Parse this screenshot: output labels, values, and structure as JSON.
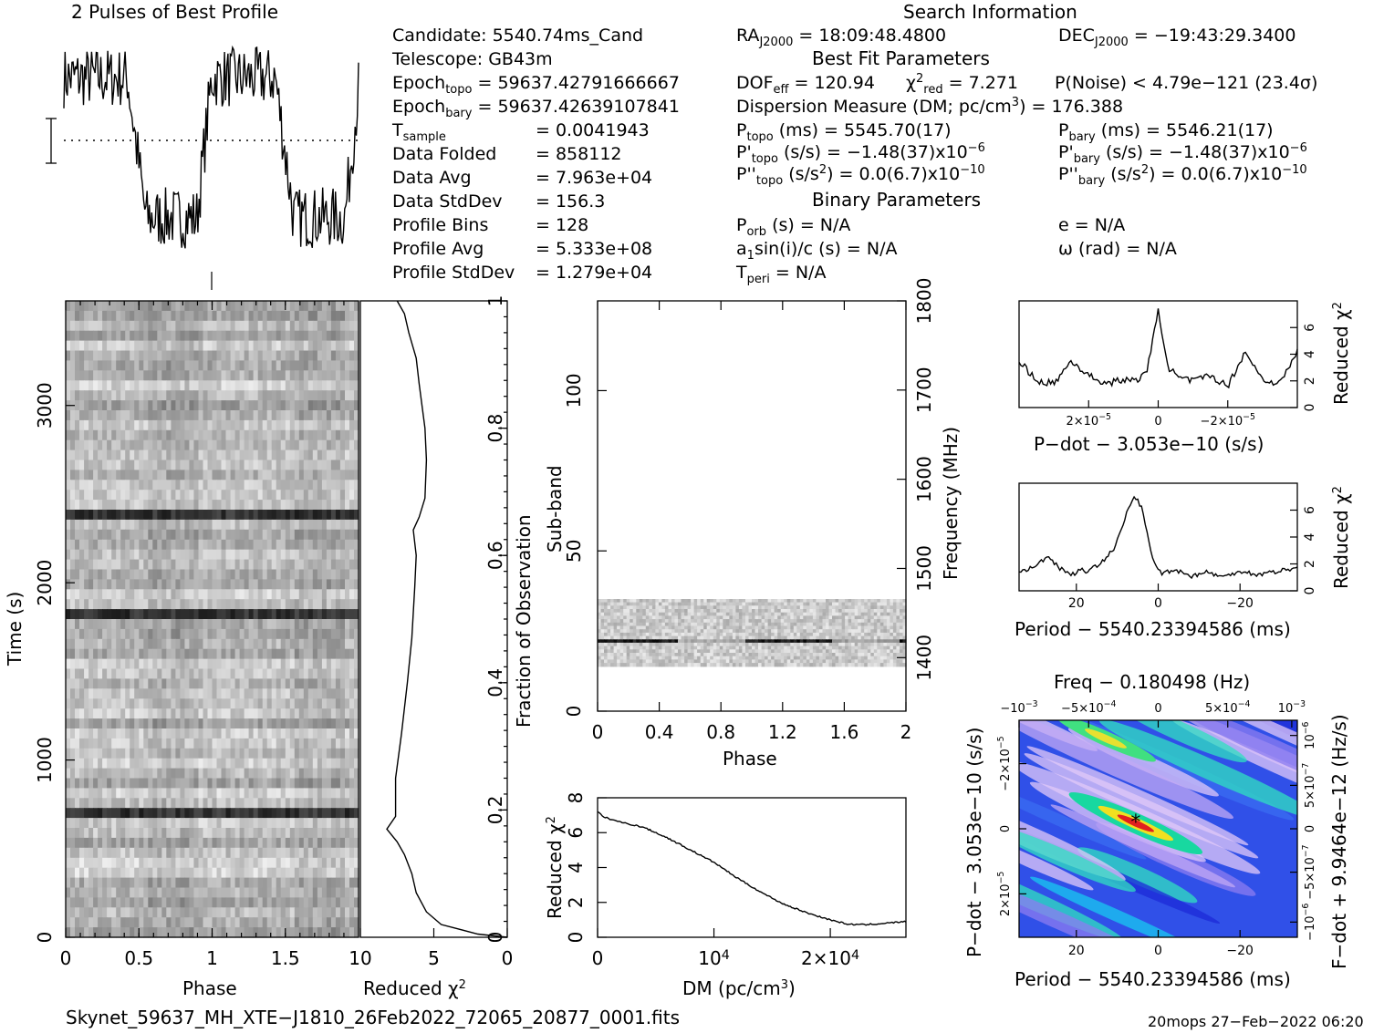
{
  "header": {
    "profile_title": "2 Pulses of Best Profile",
    "search_title": "Search Information",
    "best_fit_title": "Best Fit Parameters",
    "binary_title": "Binary Parameters"
  },
  "candidate_info": {
    "candidate": "Candidate:  5540.74ms_Cand",
    "telescope": "Telescope:  GB43m",
    "epoch_topo_label": "Epoch",
    "epoch_topo_sub": "topo",
    "epoch_topo_value": " = 59637.42791666667",
    "epoch_bary_label": "Epoch",
    "epoch_bary_sub": "bary",
    "epoch_bary_value": " = 59637.42639107841",
    "tsample_label": "T",
    "tsample_sub": "sample",
    "tsample_value": "=   0.0041943",
    "data_folded_label": "Data Folded",
    "data_folded_value": "=   858112",
    "data_avg_label": "Data Avg",
    "data_avg_value": "=   7.963e+04",
    "data_stddev_label": "Data StdDev",
    "data_stddev_value": "=   156.3",
    "profile_bins_label": "Profile Bins",
    "profile_bins_value": "=   128",
    "profile_avg_label": "Profile Avg",
    "profile_avg_value": "=   5.333e+08",
    "profile_stddev_label": "Profile StdDev",
    "profile_stddev_value": "=   1.279e+04"
  },
  "search_info": {
    "ra_label": "RA",
    "ra_sub": "J2000",
    "ra_value": " = 18:09:48.4800",
    "dec_label": "DEC",
    "dec_sub": "J2000",
    "dec_value": " = −19:43:29.3400",
    "dof_label": "DOF",
    "dof_sub": "eff",
    "dof_value": " = 120.94",
    "chi_label": "χ",
    "chi_sup": "2",
    "chi_sub": "red",
    "chi_value": " = 7.271",
    "pnoise": "P(Noise) < 4.79e−121   (23.4σ)",
    "dm_text": "Dispersion Measure (DM; pc/cm",
    "dm_sup": "3",
    "dm_value": ") = 176.388",
    "p_topo_label": "P",
    "p_topo_sub": "topo",
    "p_topo_value": " (ms)  =  5545.70(17)",
    "p_bary_label": "P",
    "p_bary_sub": "bary",
    "p_bary_value": " (ms)  =  5546.21(17)",
    "pd_topo_label": "P'",
    "pd_topo_sub": "topo",
    "pd_topo_value": " (s/s) = −1.48(37)x10",
    "pd_topo_exp": "−6",
    "pd_bary_label": "P'",
    "pd_bary_sub": "bary",
    "pd_bary_value": " (s/s) = −1.48(37)x10",
    "pd_bary_exp": "−6",
    "pdd_topo_label": "P''",
    "pdd_topo_sub": "topo",
    "pdd_topo_value": " (s/s",
    "pdd_topo_sup": "2",
    "pdd_topo_value2": ") = 0.0(6.7)x10",
    "pdd_topo_exp": "−10",
    "pdd_bary_label": "P''",
    "pdd_bary_sub": "bary",
    "pdd_bary_value": " (s/s",
    "pdd_bary_sup": "2",
    "pdd_bary_value2": ") = 0.0(6.7)x10",
    "pdd_bary_exp": "−10",
    "porb_label": "P",
    "porb_sub": "orb",
    "porb_value": " (s) = N/A",
    "ecc": "e = N/A",
    "a1_label": "a",
    "a1_sub": "1",
    "a1_value": "sin(i)/c (s) = N/A",
    "omega": "ω (rad) = N/A",
    "tperi_label": "T",
    "tperi_sub": "peri",
    "tperi_value": " = N/A"
  },
  "footer": {
    "filename": "Skynet_59637_MH_XTE−J1810_26Feb2022_72065_20877_0001.fits",
    "stamp": "20mops 27−Feb−2022 06:20"
  },
  "chart_data": [
    {
      "type": "line",
      "name": "profile",
      "title": "2 Pulses of Best Profile",
      "x_range": [
        0,
        2
      ],
      "bins_per_pulse": 128,
      "shape_note": "two pulses; high plateau at phase 0–0.45 and 1–1.45, low trough at 0.55–0.9 and 1.55–1.9",
      "mean_line": "dotted"
    },
    {
      "type": "heatmap",
      "name": "time-phase",
      "xlabel": "Phase",
      "ylabel": "Time (s)",
      "xlim": [
        0,
        2
      ],
      "ylim": [
        0,
        3590
      ],
      "xticks": [
        "0",
        "0.5",
        "1",
        "1.5"
      ],
      "yticks": [
        "0",
        "1000",
        "2000",
        "3000"
      ],
      "dark_rows_time_s": [
        2360,
        1790,
        680
      ],
      "colormap": "gray"
    },
    {
      "type": "line",
      "name": "reduced-chi2-vs-time",
      "xlabel": "Reduced χ",
      "xlabel_sup": "2",
      "ylabel": "Fraction of Observation",
      "xlim": [
        10,
        0
      ],
      "ylim": [
        0,
        1
      ],
      "xticks": [
        "10",
        "5",
        "0"
      ],
      "yticks": [
        "0",
        "0.2",
        "0.4",
        "0.6",
        "0.8",
        "1"
      ],
      "points": [
        [
          0,
          0
        ],
        [
          2,
          0.005
        ],
        [
          4.5,
          0.02
        ],
        [
          5.5,
          0.04
        ],
        [
          6.2,
          0.07
        ],
        [
          6.5,
          0.1
        ],
        [
          7,
          0.13
        ],
        [
          7.5,
          0.15
        ],
        [
          8.2,
          0.17
        ],
        [
          7.6,
          0.19
        ],
        [
          7.6,
          0.25
        ],
        [
          7.2,
          0.32
        ],
        [
          6.8,
          0.4
        ],
        [
          6.5,
          0.47
        ],
        [
          6.3,
          0.55
        ],
        [
          6.2,
          0.6
        ],
        [
          6.4,
          0.64
        ],
        [
          6.0,
          0.66
        ],
        [
          5.6,
          0.69
        ],
        [
          5.5,
          0.75
        ],
        [
          5.6,
          0.8
        ],
        [
          6.0,
          0.87
        ],
        [
          6.2,
          0.91
        ],
        [
          6.7,
          0.95
        ],
        [
          7.0,
          0.98
        ],
        [
          7.5,
          1.0
        ]
      ]
    },
    {
      "type": "heatmap",
      "name": "subband-phase",
      "xlabel": "Phase",
      "ylabel": "Sub-band",
      "y2label": "Frequency (MHz)",
      "xlim": [
        0,
        2
      ],
      "ylim": [
        0,
        128
      ],
      "y2lim": [
        1340,
        1800
      ],
      "xticks": [
        "0",
        "0.4",
        "0.8",
        "1.2",
        "1.6",
        "2"
      ],
      "yticks": [
        "0",
        "50",
        "100"
      ],
      "y2ticks": [
        "1400",
        "1500",
        "1600",
        "1700",
        "1800"
      ],
      "data_band_subbands": [
        14,
        35
      ],
      "bright_subband": 21,
      "colormap": "gray"
    },
    {
      "type": "line",
      "name": "dm-chi2",
      "xlabel": "DM (pc/cm",
      "xlabel_sup": "3",
      "xlabel_end": ")",
      "ylabel": "Reduced χ",
      "ylabel_sup": "2",
      "xlim": [
        0,
        26500
      ],
      "ylim": [
        0,
        8
      ],
      "xticks": [
        "0",
        "10",
        "2×10"
      ],
      "xticks_exp": [
        "",
        "4",
        "4"
      ],
      "yticks": [
        "0",
        "2",
        "4",
        "6",
        "8"
      ],
      "x": [
        0,
        500,
        2000,
        4000,
        6000,
        8000,
        10000,
        12000,
        14000,
        16000,
        18000,
        20000,
        21500,
        23000,
        25000,
        26500
      ],
      "y": [
        7.2,
        6.9,
        6.6,
        6.3,
        5.7,
        5.0,
        4.3,
        3.4,
        2.6,
        1.9,
        1.4,
        1.0,
        0.75,
        0.72,
        0.82,
        0.9
      ]
    },
    {
      "type": "line",
      "name": "pdot-chi2",
      "xlabel": "P−dot − 3.053e−10 (s/s)",
      "ylabel": "Reduced χ",
      "ylabel_sup": "2",
      "xlim": [
        4e-05,
        -4e-05
      ],
      "ylim": [
        0,
        8
      ],
      "xticks": [
        "2×10",
        "0",
        "−2×10"
      ],
      "xticks_exp": [
        "−5",
        "",
        "−5"
      ],
      "yticks": [
        "0",
        "2",
        "4",
        "6"
      ],
      "x": [
        4e-05,
        3.5e-05,
        3e-05,
        2.5e-05,
        2e-05,
        1.5e-05,
        1e-05,
        6e-06,
        3e-06,
        0,
        -3e-06,
        -6e-06,
        -1e-05,
        -1.5e-05,
        -2e-05,
        -2.5e-05,
        -3e-05,
        -3.5e-05,
        -4e-05
      ],
      "y": [
        3.5,
        2.0,
        1.8,
        3.5,
        2.4,
        1.8,
        2.1,
        2.0,
        3.0,
        7.2,
        3.0,
        2.2,
        2.0,
        2.4,
        1.6,
        4.2,
        2.1,
        1.8,
        4.2
      ]
    },
    {
      "type": "line",
      "name": "period-chi2",
      "xlabel": "Period − 5540.23394586 (ms)",
      "ylabel": "Reduced χ",
      "ylabel_sup": "2",
      "xlim": [
        34,
        -34
      ],
      "ylim": [
        0,
        8
      ],
      "xticks": [
        "20",
        "0",
        "−20"
      ],
      "yticks": [
        "0",
        "2",
        "4",
        "6"
      ],
      "x": [
        34,
        30,
        27,
        24,
        21,
        19,
        17,
        15,
        13,
        11,
        9,
        7,
        5.5,
        4,
        2.5,
        1,
        -1,
        -4,
        -8,
        -12,
        -16,
        -20,
        -24,
        -28,
        -32,
        -34
      ],
      "y": [
        1.4,
        1.8,
        2.6,
        1.7,
        1.2,
        1.6,
        1.4,
        1.9,
        2.4,
        3.0,
        4.5,
        6.4,
        7.0,
        6.1,
        4.0,
        2.0,
        1.3,
        1.6,
        1.1,
        1.4,
        1.0,
        1.5,
        1.2,
        1.4,
        1.6,
        1.7
      ]
    },
    {
      "type": "heatmap",
      "name": "p-pdot-plane",
      "title": "Freq − 0.180498 (Hz)",
      "xlabel": "Period − 5540.23394586 (ms)",
      "ylabel": "P−dot − 3.053e−10 (s/s)",
      "y2label": "F−dot + 9.9464e−12 (Hz/s)",
      "xlim": [
        34,
        -34
      ],
      "xticks": [
        "20",
        "0",
        "−20"
      ],
      "top_ticks": [
        "−10",
        "−5×10",
        "0",
        "5×10",
        "10"
      ],
      "top_ticks_exp": [
        "−3",
        "−4",
        "",
        "−4",
        "−3"
      ],
      "left_ticks": [
        "−2×10",
        "0",
        "2×10"
      ],
      "left_ticks_exp": [
        "−5",
        "",
        "−5"
      ],
      "right_ticks": [
        "10",
        "5×10",
        "0",
        "−5×10",
        "−10"
      ],
      "right_ticks_exp": [
        "−6",
        "−7",
        "",
        "−7",
        "−6"
      ],
      "peak_period_ms": 5.5,
      "peak_pdot": 0,
      "colormap": "rainbow"
    }
  ]
}
